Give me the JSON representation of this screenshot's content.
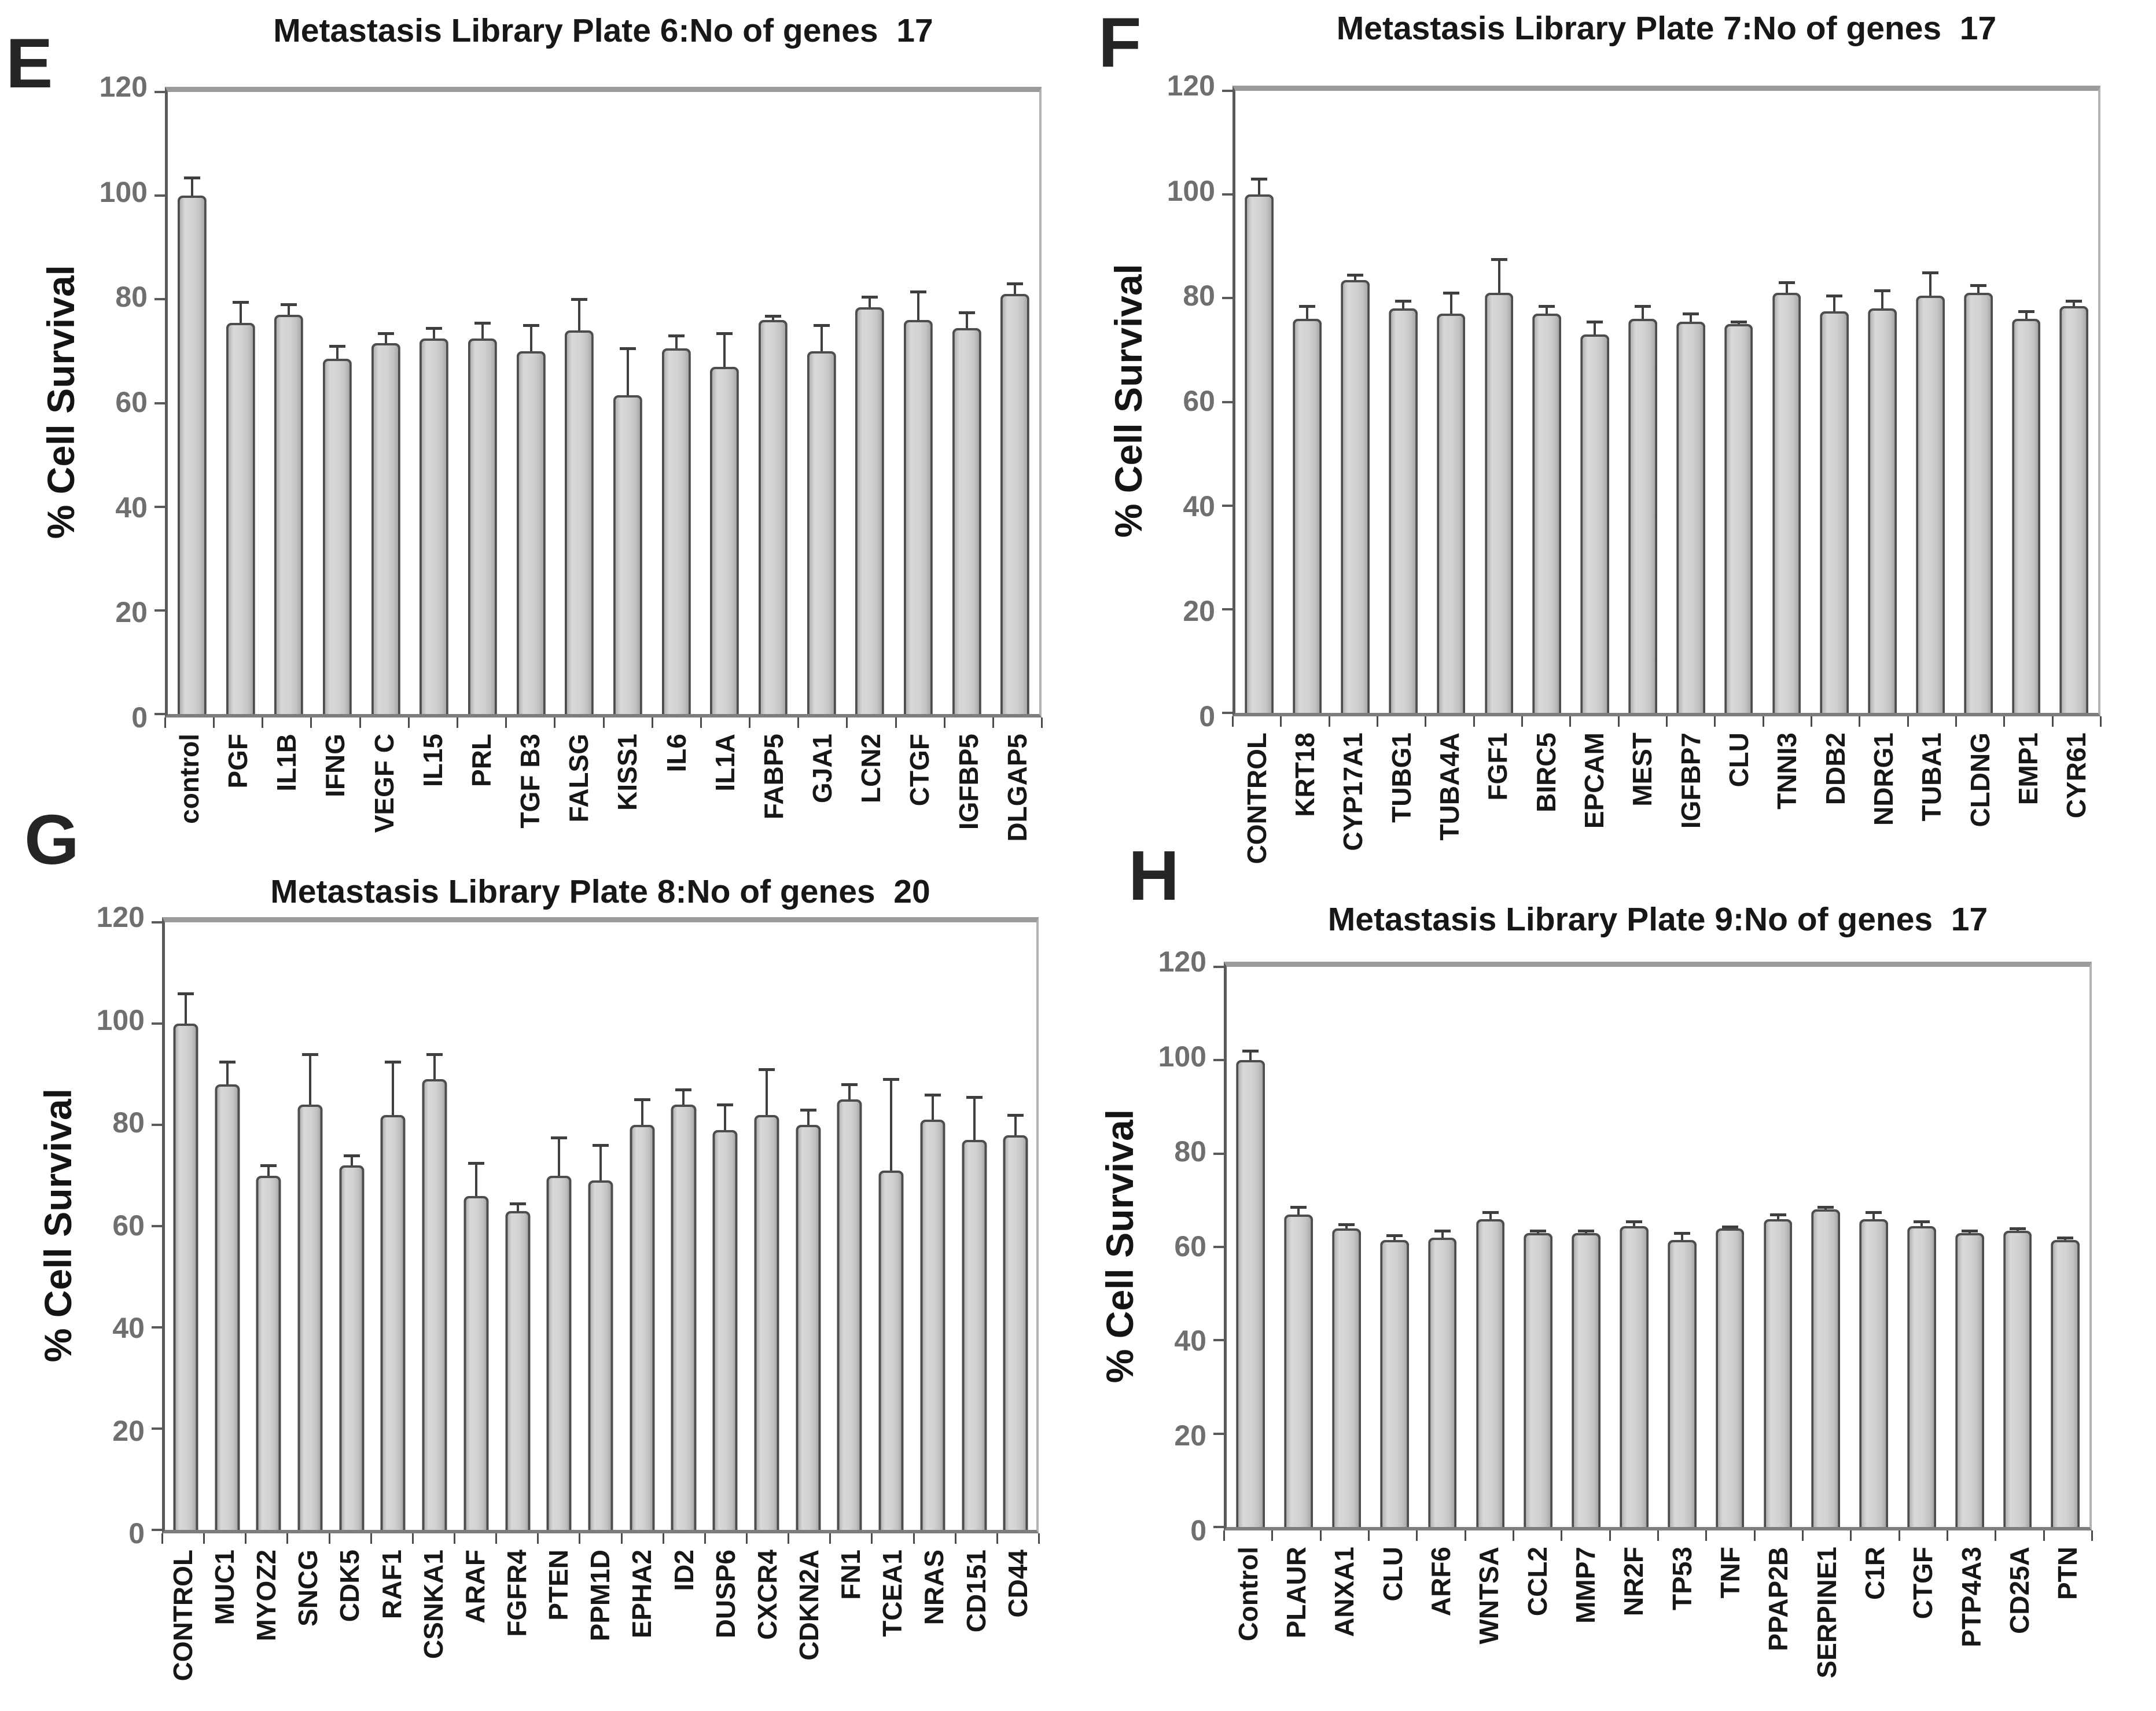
{
  "figure": {
    "background": "#ffffff",
    "description_colors": {
      "bar_fill": "#cfcecc",
      "bar_border": "#4d4d4d",
      "error_bar": "#3f3f3f",
      "axis_dark": "#5a5a5a",
      "axis_light": "#9b9b9b",
      "y_tick_text": "#6f6f6f",
      "text": "#1b1b1b"
    }
  },
  "chart_data": [
    {
      "type": "bar",
      "panel_letter": "E",
      "title": "Metastasis Library Plate 6:No of genes  17",
      "ylabel": "% Cell Survival",
      "xlabel": "",
      "ylim": [
        0,
        120
      ],
      "yticks": [
        0,
        20,
        40,
        60,
        80,
        100,
        120
      ],
      "grid": false,
      "legend": "none",
      "categories": [
        "control",
        "PGF",
        "IL1B",
        "IFNG",
        "VEGF C",
        "IL15",
        "PRL",
        "TGF B3",
        "FALSG",
        "KISS1",
        "IL6",
        "IL1A",
        "FABP5",
        "GJA1",
        "LCN2",
        "CTGF",
        "IGFBP5",
        "DLGAP5"
      ],
      "values": [
        100,
        75.5,
        77,
        68.5,
        71.5,
        72.5,
        72.5,
        70,
        74,
        61.5,
        70.5,
        67,
        76,
        70,
        78.5,
        76,
        74.5,
        81
      ],
      "errors": [
        3.5,
        4,
        2,
        2.5,
        2,
        2,
        3,
        5,
        6,
        9,
        2.5,
        6.5,
        0.8,
        5,
        2,
        5.5,
        3,
        2
      ]
    },
    {
      "type": "bar",
      "panel_letter": "F",
      "title": "Metastasis Library Plate 7:No of genes  17",
      "ylabel": "% Cell Survival",
      "xlabel": "",
      "ylim": [
        0,
        120
      ],
      "yticks": [
        0,
        20,
        40,
        60,
        80,
        100,
        120
      ],
      "grid": false,
      "legend": "none",
      "categories": [
        "CONTROL",
        "KRT18",
        "CYP17A1",
        "TUBG1",
        "TUBA4A",
        "FGF1",
        "BIRC5",
        "EPCAM",
        "MEST",
        "IGFBP7",
        "CLU",
        "TNNI3",
        "DDB2",
        "NDRG1",
        "TUBA1",
        "CLDNG",
        "EMP1",
        "CYR61"
      ],
      "values": [
        100,
        76,
        83.5,
        78,
        77,
        81,
        77,
        73,
        76,
        75.5,
        75,
        81,
        77.5,
        78,
        80.5,
        81,
        76,
        78.5
      ],
      "errors": [
        3,
        2.5,
        1,
        1.5,
        4,
        6.5,
        1.5,
        2.5,
        2.5,
        1.5,
        0.5,
        2,
        3,
        3.5,
        4.5,
        1.5,
        1.5,
        1
      ]
    },
    {
      "type": "bar",
      "panel_letter": "G",
      "title": "Metastasis Library Plate 8:No of genes  20",
      "ylabel": "% Cell Survival",
      "xlabel": "",
      "ylim": [
        0,
        120
      ],
      "yticks": [
        0,
        20,
        40,
        60,
        80,
        100,
        120
      ],
      "grid": false,
      "legend": "none",
      "categories": [
        "CONTROL",
        "MUC1",
        "MYOZ2",
        "SNCG",
        "CDK5",
        "RAF1",
        "CSNKA1",
        "ARAF",
        "FGFR4",
        "PTEN",
        "PPM1D",
        "EPHA2",
        "ID2",
        "DUSP6",
        "CXCR4",
        "CDKN2A",
        "FN1",
        "TCEA1",
        "NRAS",
        "CD151",
        "CD44"
      ],
      "values": [
        100,
        88,
        70,
        84,
        72,
        82,
        89,
        66,
        63,
        70,
        69,
        80,
        84,
        79,
        82,
        80,
        85,
        71,
        81,
        77,
        78
      ],
      "errors": [
        6,
        4.5,
        2,
        10,
        2,
        10.5,
        5,
        6.5,
        1.5,
        7.5,
        7,
        5,
        3,
        5,
        9,
        3,
        3,
        18,
        5,
        8.5,
        4
      ]
    },
    {
      "type": "bar",
      "panel_letter": "H",
      "title": "Metastasis Library Plate 9:No of genes  17",
      "ylabel": "% Cell Survival",
      "xlabel": "",
      "ylim": [
        0,
        120
      ],
      "yticks": [
        0,
        20,
        40,
        60,
        80,
        100,
        120
      ],
      "grid": false,
      "legend": "none",
      "categories": [
        "Control",
        "PLAUR",
        "ANXA1",
        "CLU",
        "ARF6",
        "WNTSA",
        "CCL2",
        "MMP7",
        "NR2F",
        "TP53",
        "TNF",
        "PPAP2B",
        "SERPINE1",
        "C1R",
        "CTGF",
        "PTP4A3",
        "CD25A",
        "PTN"
      ],
      "values": [
        100,
        67,
        64,
        61.5,
        62,
        66,
        63,
        63,
        64.5,
        61.5,
        64,
        66,
        68,
        66,
        64.5,
        63,
        63.5,
        61.5
      ],
      "errors": [
        2,
        1.5,
        0.8,
        1,
        1.5,
        1.5,
        0.5,
        0.5,
        1,
        1.5,
        0.3,
        1,
        0.5,
        1.5,
        1,
        0.5,
        0.5,
        0.5
      ]
    }
  ]
}
